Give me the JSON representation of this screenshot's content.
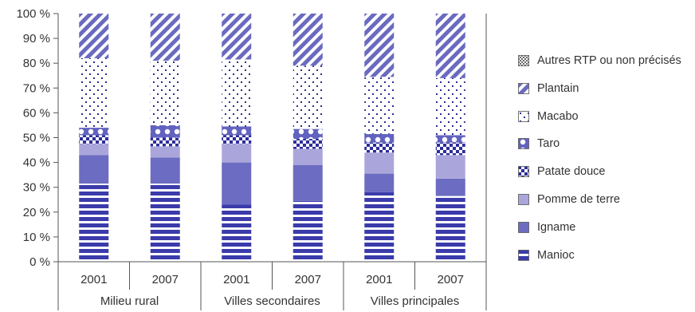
{
  "chart_data": {
    "type": "bar",
    "stacked": true,
    "ylim": [
      0,
      100
    ],
    "yticks": [
      "0 %",
      "10 %",
      "20 %",
      "30 %",
      "40 %",
      "50 %",
      "60 %",
      "70 %",
      "80 %",
      "90 %",
      "100 %"
    ],
    "groups": [
      "Milieu rural",
      "Villes secondaires",
      "Villes principales"
    ],
    "categories": [
      "2001",
      "2007",
      "2001",
      "2007",
      "2001",
      "2007"
    ],
    "category_group": [
      0,
      0,
      1,
      1,
      2,
      2
    ],
    "series": [
      {
        "name": "Manioc",
        "values": [
          31.5,
          31.5,
          23,
          24.5,
          28,
          26.5
        ]
      },
      {
        "name": "Igname",
        "values": [
          11.5,
          10.5,
          17,
          14.5,
          7.5,
          7
        ]
      },
      {
        "name": "Pomme de terre",
        "values": [
          4.5,
          4.5,
          7.5,
          6.5,
          8.5,
          9.5
        ]
      },
      {
        "name": "Patate douce",
        "values": [
          3.5,
          3.5,
          3.5,
          4,
          4,
          5
        ]
      },
      {
        "name": "Taro",
        "values": [
          3,
          5,
          3.5,
          4,
          3.5,
          3
        ]
      },
      {
        "name": "Macabo",
        "values": [
          28,
          26,
          27,
          25.5,
          23,
          23
        ]
      },
      {
        "name": "Plantain",
        "values": [
          18,
          19,
          18.5,
          21,
          25.5,
          26
        ]
      },
      {
        "name": "Autres RTP ou non précisés",
        "values": [
          0,
          0,
          0,
          0,
          0,
          0
        ]
      }
    ],
    "legend_position": "right",
    "legend_order": [
      "Autres RTP ou non précisés",
      "Plantain",
      "Macabo",
      "Taro",
      "Patate douce",
      "Pomme de terre",
      "Igname",
      "Manioc"
    ],
    "colors": {
      "Manioc": "#3b3bab",
      "Igname": "#6c6cc2",
      "Pomme de terre": "#aaa6db",
      "Patate douce": "#3b3bab",
      "Taro": "#6262c0",
      "Macabo": "#2a2a8c",
      "Plantain": "#6a6ac0",
      "Autres RTP ou non précisés": "#666666"
    },
    "patterns": {
      "Manioc": "horizontal-stripes",
      "Igname": "solid",
      "Pomme de terre": "solid",
      "Patate douce": "checker",
      "Taro": "circles",
      "Macabo": "dots",
      "Plantain": "diagonal-stripes",
      "Autres RTP ou non précisés": "small-checker"
    }
  }
}
